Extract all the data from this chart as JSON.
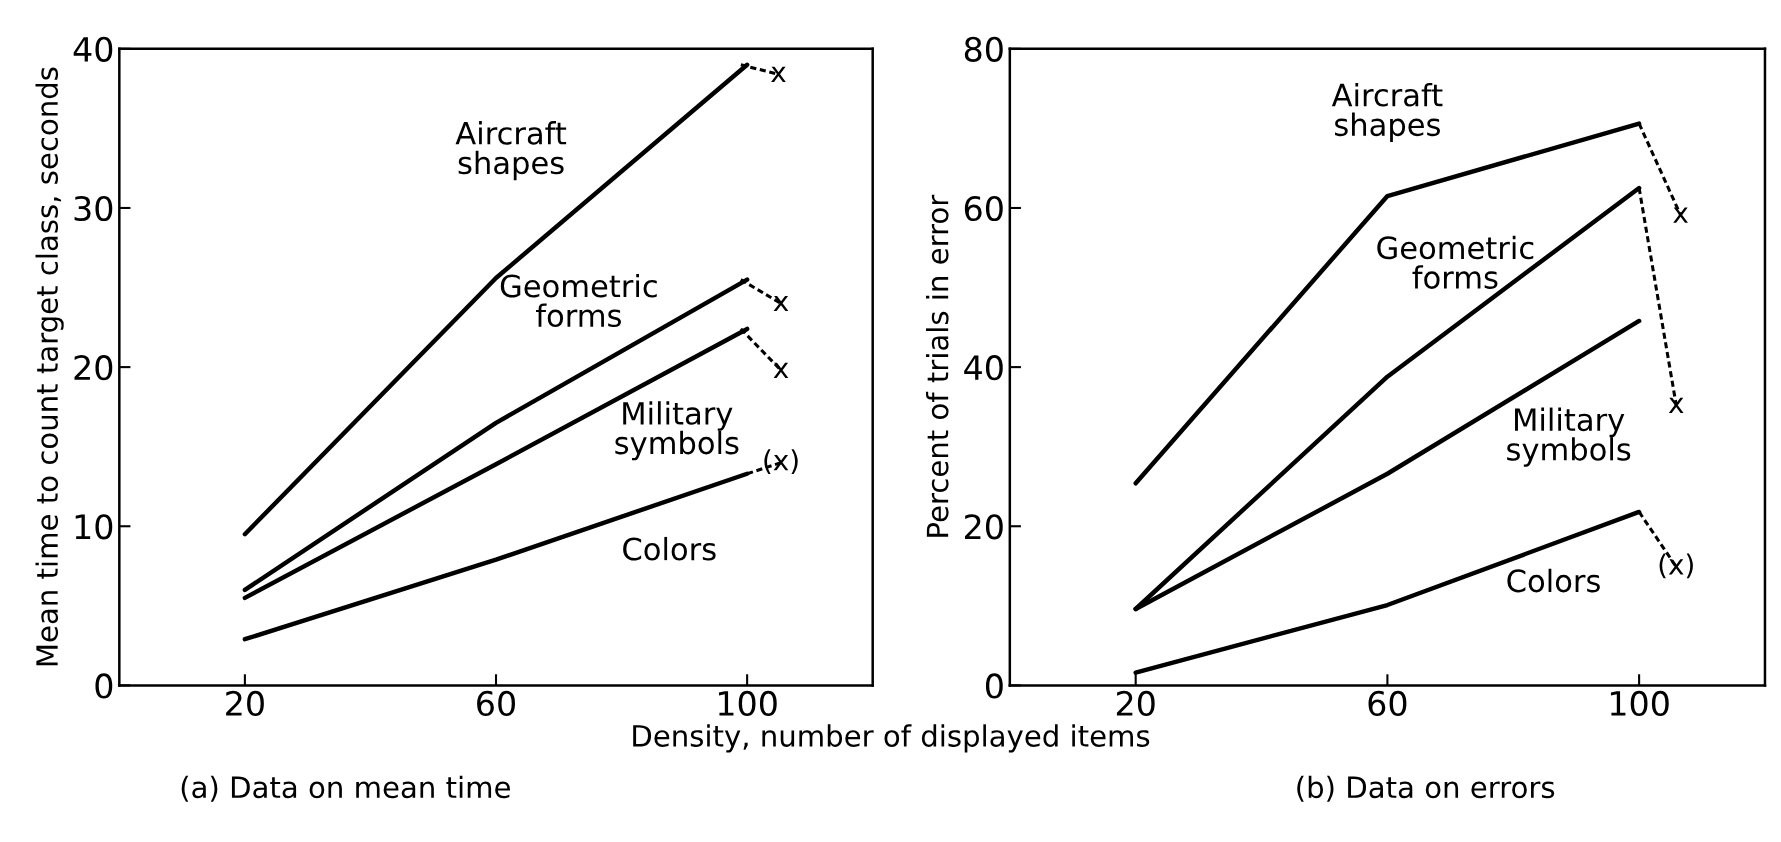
{
  "chart_data": [
    {
      "type": "line",
      "title": "(a) Data on mean time",
      "xlabel": "Density, number of displayed items",
      "ylabel": "Mean time to count target class, seconds",
      "x": [
        20,
        60,
        100
      ],
      "xlim": [
        0,
        120
      ],
      "xticks": [
        20,
        60,
        100
      ],
      "ylim": [
        0,
        40
      ],
      "yticks": [
        0,
        10,
        20,
        30,
        40
      ],
      "grid": false,
      "legend": false,
      "marker": "none",
      "series": [
        {
          "name": "Aircraft\nshapes",
          "color": "#000000",
          "values": [
            9.5,
            25.6,
            39.0
          ]
        },
        {
          "name": "Geometric\nforms",
          "color": "#000000",
          "values": [
            6.0,
            16.5,
            25.5
          ]
        },
        {
          "name": "Military\nsymbols",
          "color": "#000000",
          "values": [
            5.5,
            13.9,
            22.4
          ]
        },
        {
          "name": "Colors",
          "color": "#000000",
          "values": [
            2.9,
            7.9,
            13.3
          ]
        },
        {
          "color": "#000000",
          "line_style": "dashed",
          "x": [
            99,
            105
          ],
          "values": [
            39.0,
            38.4
          ]
        },
        {
          "color": "#000000",
          "line_style": "dashed",
          "x": [
            99,
            105.4
          ],
          "values": [
            25.5,
            24.0
          ]
        },
        {
          "color": "#000000",
          "line_style": "dashed",
          "x": [
            99,
            105.4
          ],
          "values": [
            22.4,
            19.8
          ]
        },
        {
          "color": "#000000",
          "line_style": "dashed",
          "x": [
            100,
            105.4
          ],
          "values": [
            13.3,
            14.0
          ]
        }
      ],
      "annotations": [
        {
          "text": "x",
          "x": 105,
          "y": 38.4
        },
        {
          "text": "x",
          "x": 105.4,
          "y": 24.0
        },
        {
          "text": "x",
          "x": 105.4,
          "y": 19.8
        },
        {
          "text": "(x)",
          "x": 105.4,
          "y": 14.0
        }
      ]
    },
    {
      "type": "line",
      "title": "(b) Data on errors",
      "ylabel": "Percent of trials in error",
      "x": [
        20,
        60,
        100
      ],
      "xlim": [
        0,
        120
      ],
      "xticks": [
        20,
        60,
        100
      ],
      "ylim": [
        0,
        80
      ],
      "yticks": [
        0,
        20,
        40,
        60,
        80
      ],
      "grid": false,
      "legend": false,
      "marker": "none",
      "series": [
        {
          "name": "Aircraft\nshapes",
          "color": "#000000",
          "values": [
            25.4,
            61.5,
            70.6
          ]
        },
        {
          "name": "Geometric\nforms",
          "color": "#000000",
          "values": [
            9.6,
            38.8,
            62.5
          ]
        },
        {
          "name": "Military\nsymbols",
          "color": "#000000",
          "values": [
            9.6,
            26.6,
            45.8
          ]
        },
        {
          "name": "Colors",
          "color": "#000000",
          "values": [
            1.6,
            10.1,
            21.8
          ]
        },
        {
          "color": "#000000",
          "line_style": "dashed",
          "x": [
            100,
            106.6
          ],
          "values": [
            70.6,
            59.1
          ]
        },
        {
          "color": "#000000",
          "line_style": "dashed",
          "x": [
            100,
            105.9
          ],
          "values": [
            62.5,
            35.2
          ]
        },
        {
          "color": "#000000",
          "line_style": "dashed",
          "x": [
            100,
            105.9
          ],
          "values": [
            21.8,
            14.9
          ]
        }
      ],
      "annotations": [
        {
          "text": "x",
          "x": 106.6,
          "y": 59.1
        },
        {
          "text": "x",
          "x": 105.9,
          "y": 35.2
        },
        {
          "text": "(x)",
          "x": 105.9,
          "y": 14.9
        }
      ]
    }
  ]
}
